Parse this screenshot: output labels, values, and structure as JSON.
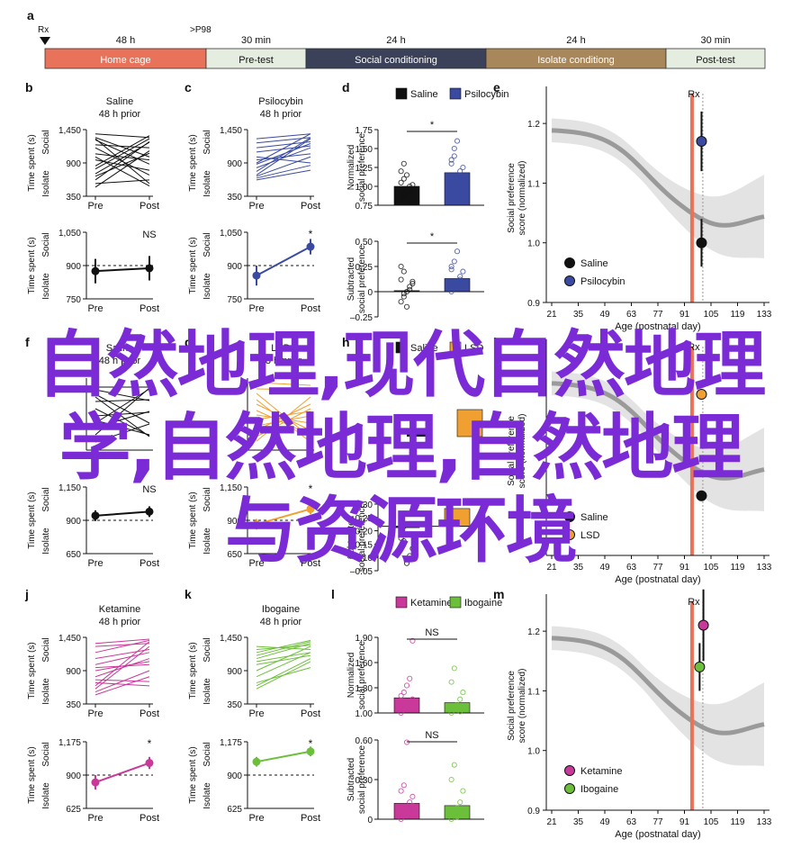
{
  "timeline": {
    "panel_letter": "a",
    "markers": [
      "Rx",
      ">P98"
    ],
    "segments": [
      {
        "label": "Home cage",
        "duration": "48 h",
        "color": "#e8735a"
      },
      {
        "label": "Pre-test",
        "duration": "30 min",
        "color": "#e5ede0"
      },
      {
        "label": "Social conditioning",
        "duration": "24 h",
        "color": "#3a4158"
      },
      {
        "label": "Isolate conditiong",
        "duration": "24 h",
        "color": "#a8875a"
      },
      {
        "label": "Post-test",
        "duration": "30 min",
        "color": "#e5ede0"
      }
    ]
  },
  "labels": {
    "time_spent": "Time spent (s)",
    "social": "Social",
    "isolate": "Isolate",
    "pre": "Pre",
    "post": "Post",
    "norm_pref": [
      "Normalized",
      "social preference"
    ],
    "sub_pref": [
      "Subtracted",
      "social preference"
    ],
    "score": [
      "Social preference",
      "score (normalized)"
    ],
    "age": "Age (postnatal day)",
    "rx": "Rx"
  },
  "colors": {
    "saline": "#111111",
    "psilocybin": "#3a4aa0",
    "lsd": "#f0a030",
    "ketamine": "#c8399a",
    "ibogaine": "#6cbf3a",
    "rx_line": "#e8735a",
    "trend": "#9a9a9a",
    "band": "#e3e3e3"
  },
  "overlay_text": [
    "自然地理,现代自然地理",
    "学,自然地理,自然地理",
    "与资源环境"
  ],
  "chart_data": [
    {
      "id": "b",
      "type": "line",
      "panel_letter": "b",
      "title": "Saline",
      "subtitle": "48 h prior",
      "x": [
        "Pre",
        "Post"
      ],
      "ylim": [
        350,
        1450
      ],
      "yticks": [
        "1,450",
        "900",
        "350"
      ],
      "color": "#111111",
      "series": [
        [
          620,
          1250
        ],
        [
          1300,
          560
        ],
        [
          1050,
          950
        ],
        [
          800,
          1300
        ],
        [
          1150,
          700
        ],
        [
          1380,
          1320
        ],
        [
          500,
          1100
        ],
        [
          1280,
          880
        ],
        [
          720,
          1240
        ],
        [
          1000,
          520
        ],
        [
          850,
          1350
        ],
        [
          1200,
          1150
        ],
        [
          560,
          620
        ],
        [
          1320,
          1000
        ],
        [
          950,
          780
        ],
        [
          680,
          1060
        ]
      ]
    },
    {
      "id": "b2",
      "type": "line",
      "x": [
        "Pre",
        "Post"
      ],
      "ylim": [
        750,
        1050
      ],
      "yticks": [
        "1,050",
        "900",
        "750"
      ],
      "ref": 900,
      "color": "#111111",
      "series": [
        {
          "values": [
            875,
            888
          ],
          "err": [
            55,
            55
          ]
        }
      ],
      "annotation": "NS"
    },
    {
      "id": "c",
      "type": "line",
      "panel_letter": "c",
      "title": "Psilocybin",
      "subtitle": "48 h prior",
      "x": [
        "Pre",
        "Post"
      ],
      "ylim": [
        350,
        1450
      ],
      "yticks": [
        "1,450",
        "900",
        "350"
      ],
      "color": "#3a4aa0",
      "series": [
        [
          700,
          1300
        ],
        [
          820,
          1150
        ],
        [
          1300,
          1380
        ],
        [
          620,
          780
        ],
        [
          950,
          1050
        ],
        [
          1150,
          1250
        ],
        [
          760,
          1320
        ],
        [
          1000,
          900
        ],
        [
          880,
          1220
        ],
        [
          680,
          1000
        ],
        [
          1230,
          1320
        ],
        [
          1080,
          1180
        ],
        [
          900,
          1380
        ],
        [
          650,
          860
        ]
      ]
    },
    {
      "id": "c2",
      "type": "line",
      "x": [
        "Pre",
        "Post"
      ],
      "ylim": [
        750,
        1050
      ],
      "yticks": [
        "1,050",
        "900",
        "750"
      ],
      "ref": 900,
      "color": "#3a4aa0",
      "series": [
        {
          "values": [
            855,
            985
          ],
          "err": [
            45,
            35
          ]
        }
      ],
      "annotation": "*"
    },
    {
      "id": "d",
      "type": "bar",
      "panel_letter": "d",
      "legend": [
        "Saline",
        "Psilocybin"
      ],
      "categories": [
        "Saline",
        "Psilocybin"
      ],
      "values": [
        1.0,
        1.18
      ],
      "ylim": [
        0.75,
        1.75
      ],
      "yticks": [
        "1.75",
        "1.50",
        "1.25",
        "1.00",
        "0.75"
      ],
      "annotation": "*",
      "points": [
        [
          0.85,
          0.9,
          0.95,
          1.0,
          1.02,
          1.05,
          1.1,
          1.15,
          0.8,
          0.92,
          1.2,
          1.3,
          0.88
        ],
        [
          1.0,
          1.05,
          1.1,
          1.2,
          1.25,
          1.3,
          1.4,
          1.6,
          1.15,
          1.08,
          1.35,
          1.5
        ]
      ]
    },
    {
      "id": "d2",
      "type": "bar",
      "categories": [
        "Saline",
        "Psilocybin"
      ],
      "values": [
        0.01,
        0.13
      ],
      "ylim": [
        -0.25,
        0.5
      ],
      "yticks": [
        "0.50",
        "0.25",
        "0",
        "–0.25"
      ],
      "annotation": "*",
      "points": [
        [
          -0.1,
          -0.05,
          0.0,
          0.05,
          0.1,
          0.12,
          0.2,
          -0.15,
          0.02,
          0.08,
          0.25,
          -0.02
        ],
        [
          0.0,
          0.05,
          0.1,
          0.15,
          0.2,
          0.25,
          0.3,
          0.4,
          0.12,
          0.08,
          0.22
        ]
      ]
    },
    {
      "id": "e",
      "type": "scatter",
      "panel_letter": "e",
      "x_ticks": [
        21,
        35,
        49,
        63,
        77,
        91,
        105,
        119,
        133
      ],
      "ylim": [
        0.9,
        1.25
      ],
      "yticks": [
        "1.2",
        "1.1",
        "1.0",
        "0.9"
      ],
      "rx_age": 95,
      "series": [
        {
          "name": "Saline",
          "x": 100,
          "y": 1.0,
          "err": 0.04
        },
        {
          "name": "Psilocybin",
          "x": 100,
          "y": 1.17,
          "err": 0.05
        }
      ]
    },
    {
      "id": "f",
      "type": "line",
      "panel_letter": "f",
      "title": "Saline",
      "subtitle": "48 h prior",
      "color": "#111111"
    },
    {
      "id": "f2",
      "type": "line",
      "x": [
        "Pre",
        "Post"
      ],
      "ylim": [
        650,
        1150
      ],
      "yticks": [
        "1,150",
        "900",
        "650"
      ],
      "ref": 900,
      "color": "#111111",
      "series": [
        {
          "values": [
            935,
            965
          ],
          "err": [
            40,
            40
          ]
        }
      ],
      "annotation": "NS"
    },
    {
      "id": "g",
      "type": "line",
      "panel_letter": "g",
      "title": "LSD",
      "subtitle": "48 h prior",
      "color": "#f0a030"
    },
    {
      "id": "g2",
      "type": "line",
      "x": [
        "Pre",
        "Post"
      ],
      "ylim": [
        650,
        1150
      ],
      "yticks": [
        "1,150",
        "900",
        "650"
      ],
      "ref": 900,
      "color": "#f0a030",
      "series": [
        {
          "values": [
            870,
            985
          ],
          "err": [
            40,
            40
          ]
        }
      ],
      "annotation": "*"
    },
    {
      "id": "h",
      "type": "bar",
      "panel_letter": "h",
      "legend": [
        "Saline",
        "LSD"
      ]
    },
    {
      "id": "h2",
      "type": "bar",
      "categories": [
        "Saline",
        "LSD"
      ],
      "values": [
        0.0,
        0.12
      ],
      "ylim": [
        -0.3,
        0.15
      ],
      "yticks": [
        "–0.30",
        "–0.25",
        "–0.20",
        "–0.15",
        "–0.10",
        "–0.05"
      ],
      "points": [
        [
          -0.05,
          -0.1,
          -0.25,
          -0.2,
          -0.15,
          -0.08,
          0.0
        ],
        []
      ]
    },
    {
      "id": "i",
      "type": "scatter",
      "panel_letter": "i",
      "x_ticks": [
        21,
        35,
        49,
        63,
        77,
        91,
        105,
        119,
        133
      ],
      "rx_age": 95,
      "series": [
        {
          "name": "Saline",
          "x": 100,
          "y": 1.0
        },
        {
          "name": "LSD",
          "x": 100,
          "y": 1.17
        }
      ]
    },
    {
      "id": "j",
      "type": "line",
      "panel_letter": "j",
      "title": "Ketamine",
      "subtitle": "48 h prior",
      "x": [
        "Pre",
        "Post"
      ],
      "ylim": [
        350,
        1450
      ],
      "yticks": [
        "1,450",
        "900",
        "350"
      ],
      "color": "#c8399a",
      "series": [
        [
          600,
          1300
        ],
        [
          800,
          1100
        ],
        [
          1200,
          1400
        ],
        [
          700,
          650
        ],
        [
          1000,
          1200
        ],
        [
          1300,
          1350
        ],
        [
          550,
          900
        ],
        [
          900,
          1050
        ],
        [
          1100,
          1250
        ],
        [
          650,
          1380
        ],
        [
          750,
          720
        ],
        [
          1350,
          1420
        ],
        [
          950,
          1000
        ],
        [
          500,
          800
        ]
      ]
    },
    {
      "id": "j2",
      "type": "line",
      "x": [
        "Pre",
        "Post"
      ],
      "ylim": [
        625,
        1175
      ],
      "yticks": [
        "1,175",
        "900",
        "625"
      ],
      "ref": 900,
      "color": "#c8399a",
      "series": [
        {
          "values": [
            840,
            1000
          ],
          "err": [
            60,
            50
          ]
        }
      ],
      "annotation": "*"
    },
    {
      "id": "k",
      "type": "line",
      "panel_letter": "k",
      "title": "Ibogaine",
      "subtitle": "48 h prior",
      "x": [
        "Pre",
        "Post"
      ],
      "ylim": [
        350,
        1450
      ],
      "yticks": [
        "1,450",
        "900",
        "350"
      ],
      "color": "#6cbf3a",
      "series": [
        [
          1100,
          1350
        ],
        [
          800,
          1200
        ],
        [
          1200,
          1400
        ],
        [
          650,
          1100
        ],
        [
          1000,
          1150
        ],
        [
          1300,
          1250
        ],
        [
          900,
          1300
        ],
        [
          1150,
          1380
        ],
        [
          700,
          950
        ],
        [
          1050,
          1200
        ],
        [
          1250,
          1320
        ],
        [
          600,
          1050
        ]
      ]
    },
    {
      "id": "k2",
      "type": "line",
      "x": [
        "Pre",
        "Post"
      ],
      "ylim": [
        625,
        1175
      ],
      "yticks": [
        "1,175",
        "900",
        "625"
      ],
      "ref": 900,
      "color": "#6cbf3a",
      "series": [
        {
          "values": [
            1010,
            1095
          ],
          "err": [
            40,
            40
          ]
        }
      ],
      "annotation": "*"
    },
    {
      "id": "l",
      "type": "bar",
      "panel_letter": "l",
      "legend": [
        "Ketamine",
        "Ibogaine"
      ],
      "categories": [
        "Ketamine",
        "Ibogaine"
      ],
      "values": [
        1.22,
        1.15
      ],
      "ylim": [
        1.0,
        2.1
      ],
      "yticks": [
        "1.90",
        "1.60",
        "1.30",
        "1.00"
      ],
      "annotation": "NS",
      "points": [
        [
          1.0,
          1.05,
          1.1,
          1.15,
          1.2,
          1.25,
          1.3,
          1.4,
          1.5,
          2.05,
          1.08,
          1.18
        ],
        [
          1.0,
          1.05,
          1.1,
          1.2,
          1.3,
          1.45,
          1.65,
          1.12,
          1.02
        ]
      ]
    },
    {
      "id": "l2",
      "type": "bar",
      "categories": [
        "Ketamine",
        "Ibogaine"
      ],
      "values": [
        0.14,
        0.12
      ],
      "ylim": [
        0,
        0.7
      ],
      "yticks": [
        "0.60",
        "0.30",
        "0"
      ],
      "annotation": "NS",
      "points": [
        [
          0.0,
          0.05,
          0.1,
          0.15,
          0.2,
          0.25,
          0.3,
          0.68,
          0.08,
          0.12
        ],
        [
          0.0,
          0.05,
          0.1,
          0.15,
          0.25,
          0.35,
          0.48,
          0.02
        ]
      ]
    },
    {
      "id": "m",
      "type": "scatter",
      "panel_letter": "m",
      "x_ticks": [
        21,
        35,
        49,
        63,
        77,
        91,
        105,
        119,
        133
      ],
      "ylim": [
        0.9,
        1.25
      ],
      "yticks": [
        "1.2",
        "1.1",
        "1.0",
        "0.9"
      ],
      "rx_age": 95,
      "series": [
        {
          "name": "Ketamine",
          "x": 101,
          "y": 1.21,
          "err": 0.06
        },
        {
          "name": "Ibogaine",
          "x": 99,
          "y": 1.14,
          "err": 0.04
        }
      ]
    }
  ]
}
